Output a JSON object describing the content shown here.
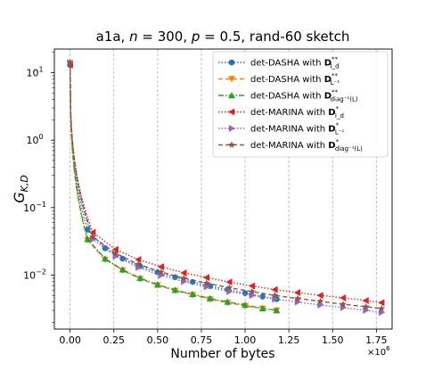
{
  "chart_data": {
    "type": "line",
    "title": "a1a, n = 300, p = 0.5, rand-60 sketch",
    "title_parts": {
      "prefix": "a1a, ",
      "n_var": "n",
      "n_val": " = 300, ",
      "p_var": "p",
      "p_val": " = 0.5, rand-60 sketch"
    },
    "xlabel": "Number of bytes",
    "ylabel": "G_{K,D}",
    "ylabel_parts": {
      "main": "G",
      "sub": "K,D"
    },
    "x_scale_note": "×10^6",
    "x_scale_parts": {
      "base": "×10",
      "exp": "6"
    },
    "xlim": [
      -0.09,
      1.84
    ],
    "ylim_log10": [
      -2.8,
      1.35
    ],
    "y_scale": "log",
    "x_ticks": [
      {
        "value": 0.0,
        "label": "0.00"
      },
      {
        "value": 0.25,
        "label": "0.25"
      },
      {
        "value": 0.5,
        "label": "0.50"
      },
      {
        "value": 0.75,
        "label": "0.75"
      },
      {
        "value": 1.0,
        "label": "1.00"
      },
      {
        "value": 1.25,
        "label": "1.25"
      },
      {
        "value": 1.5,
        "label": "1.50"
      },
      {
        "value": 1.75,
        "label": "1.75"
      }
    ],
    "y_ticks": [
      {
        "value": 0.01,
        "base": "10",
        "exp": "−2"
      },
      {
        "value": 0.1,
        "base": "10",
        "exp": "−1"
      },
      {
        "value": 1,
        "base": "10",
        "exp": "0"
      },
      {
        "value": 10,
        "base": "10",
        "exp": "1"
      }
    ],
    "grid": "vertical dashed",
    "legend_position": "top-right",
    "series": [
      {
        "name": "det-DASHA with D**_{I_d}",
        "label_main": "det-DASHA with ",
        "label_D": "D",
        "label_sup": "**",
        "label_sub": "I_d",
        "color": "#1f77b4",
        "linestyle": "dotted",
        "marker": "circle",
        "x": [
          0.0,
          0.1,
          0.2,
          0.3,
          0.4,
          0.5,
          0.6,
          0.7,
          0.8,
          0.9,
          1.0,
          1.1,
          1.18
        ],
        "y": [
          13.0,
          0.047,
          0.025,
          0.0175,
          0.0135,
          0.011,
          0.0093,
          0.0079,
          0.0069,
          0.0061,
          0.0054,
          0.0048,
          0.0044
        ]
      },
      {
        "name": "det-DASHA with D**_{L^-1}",
        "label_main": "det-DASHA with ",
        "label_D": "D",
        "label_sup": "**",
        "label_sub": "L⁻¹",
        "color": "#ff7f0e",
        "linestyle": "dashed",
        "marker": "triangle-down",
        "x": [
          0.0,
          0.1,
          0.2,
          0.3,
          0.4,
          0.5,
          0.6,
          0.7,
          0.8,
          0.9,
          1.0,
          1.1,
          1.18
        ],
        "y": [
          14.0,
          0.033,
          0.017,
          0.0118,
          0.0088,
          0.0071,
          0.0059,
          0.0051,
          0.0044,
          0.0039,
          0.0035,
          0.0032,
          0.003
        ]
      },
      {
        "name": "det-DASHA with D**_{diag^-1(L)}",
        "label_main": "det-DASHA with ",
        "label_D": "D",
        "label_sup": "**",
        "label_sub": "diag⁻¹(L)",
        "color": "#2ca02c",
        "linestyle": "dashdot",
        "marker": "triangle-up",
        "x": [
          0.0,
          0.1,
          0.2,
          0.3,
          0.4,
          0.5,
          0.6,
          0.7,
          0.8,
          0.9,
          1.0,
          1.1,
          1.18
        ],
        "y": [
          14.0,
          0.034,
          0.0175,
          0.012,
          0.009,
          0.0072,
          0.006,
          0.0052,
          0.0045,
          0.004,
          0.0036,
          0.0032,
          0.003
        ]
      },
      {
        "name": "det-MARINA with D*_{I_d}",
        "label_main": "det-MARINA with ",
        "label_D": "D",
        "label_sup": "*",
        "label_sub": "I_d",
        "color": "#d62728",
        "linestyle": "dotted",
        "marker": "triangle-left",
        "x": [
          0.0,
          0.13,
          0.26,
          0.39,
          0.52,
          0.65,
          0.78,
          0.91,
          1.04,
          1.17,
          1.3,
          1.43,
          1.56,
          1.69,
          1.78
        ],
        "y": [
          13.0,
          0.043,
          0.024,
          0.017,
          0.0133,
          0.0108,
          0.0092,
          0.0079,
          0.0069,
          0.0061,
          0.0055,
          0.005,
          0.0046,
          0.0042,
          0.0039
        ]
      },
      {
        "name": "det-MARINA with D*_{L^-1}",
        "label_main": "det-MARINA with ",
        "label_D": "D",
        "label_sup": "*",
        "label_sub": "L⁻¹",
        "color": "#9467bd",
        "linestyle": "dotted",
        "marker": "triangle-right",
        "x": [
          0.0,
          0.13,
          0.26,
          0.39,
          0.52,
          0.65,
          0.78,
          0.91,
          1.04,
          1.17,
          1.3,
          1.43,
          1.56,
          1.69,
          1.78
        ],
        "y": [
          14.0,
          0.034,
          0.019,
          0.013,
          0.0099,
          0.008,
          0.0067,
          0.0057,
          0.005,
          0.0044,
          0.004,
          0.0036,
          0.0033,
          0.003,
          0.0028
        ]
      },
      {
        "name": "det-MARINA with D*_{diag^-1(L)}",
        "label_main": "det-MARINA with ",
        "label_D": "D",
        "label_sup": "*",
        "label_sub": "diag⁻¹(L)",
        "color": "#8c564b",
        "linestyle": "dashed",
        "marker": "star",
        "x": [
          0.0,
          0.13,
          0.26,
          0.39,
          0.52,
          0.65,
          0.78,
          0.91,
          1.04,
          1.17,
          1.3,
          1.43,
          1.56,
          1.69,
          1.78
        ],
        "y": [
          14.0,
          0.037,
          0.021,
          0.0145,
          0.0111,
          0.009,
          0.0076,
          0.0065,
          0.0057,
          0.005,
          0.0045,
          0.0041,
          0.0037,
          0.0034,
          0.0032
        ]
      }
    ]
  }
}
